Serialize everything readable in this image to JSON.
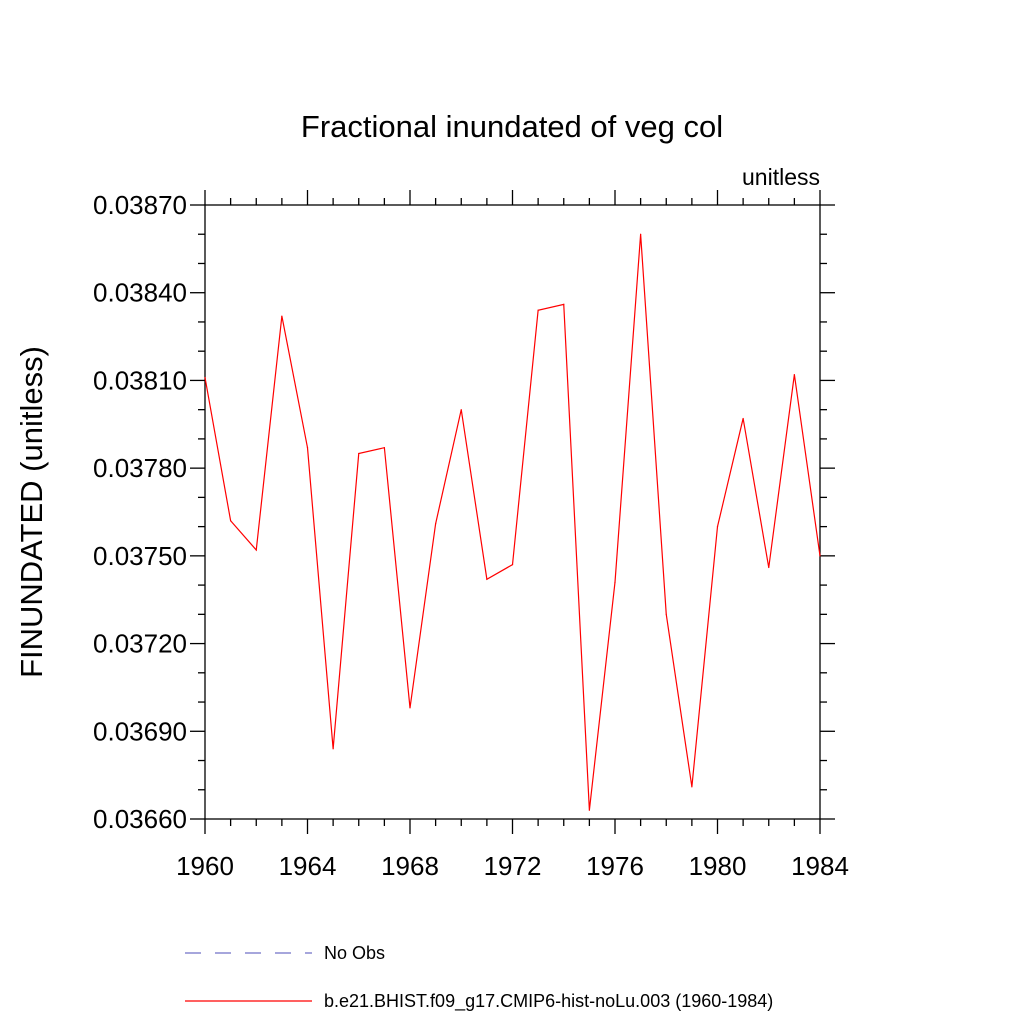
{
  "chart_data": {
    "type": "line",
    "title": "Fractional inundated of veg col",
    "units_label": "unitless",
    "ylabel": "FINUNDATED  (unitless)",
    "xlabel": "",
    "xlim": [
      1960,
      1984
    ],
    "ylim": [
      0.0366,
      0.0387
    ],
    "x_ticks": [
      1960,
      1964,
      1968,
      1972,
      1976,
      1980,
      1984
    ],
    "y_ticks": [
      0.0366,
      0.0369,
      0.0372,
      0.0375,
      0.0378,
      0.0381,
      0.0384,
      0.0387
    ],
    "x_tick_labels": [
      "1960",
      "1964",
      "1968",
      "1972",
      "1976",
      "1980",
      "1984"
    ],
    "y_tick_labels": [
      "0.03660",
      "0.03690",
      "0.03720",
      "0.03750",
      "0.03780",
      "0.03810",
      "0.03840",
      "0.03870"
    ],
    "series": [
      {
        "name": "b.e21.BHIST.f09_g17.CMIP6-hist-noLu.003 (1960-1984)",
        "color": "#ff0000",
        "style": "solid",
        "x": [
          1960,
          1961,
          1962,
          1963,
          1964,
          1965,
          1966,
          1967,
          1968,
          1969,
          1970,
          1971,
          1972,
          1973,
          1974,
          1975,
          1976,
          1977,
          1978,
          1979,
          1980,
          1981,
          1982,
          1983,
          1984
        ],
        "values": [
          0.03811,
          0.03762,
          0.03752,
          0.03832,
          0.03787,
          0.03684,
          0.03785,
          0.03787,
          0.03698,
          0.03761,
          0.038,
          0.03742,
          0.03747,
          0.03834,
          0.03836,
          0.03663,
          0.03741,
          0.0386,
          0.0373,
          0.03671,
          0.0376,
          0.03797,
          0.03746,
          0.03812,
          0.0375
        ]
      }
    ],
    "legend": [
      {
        "label": "No Obs",
        "color": "#7070c8",
        "style": "dashed"
      },
      {
        "label": "b.e21.BHIST.f09_g17.CMIP6-hist-noLu.003 (1960-1984)",
        "color": "#ff0000",
        "style": "solid"
      }
    ],
    "legend_position": "bottom"
  }
}
